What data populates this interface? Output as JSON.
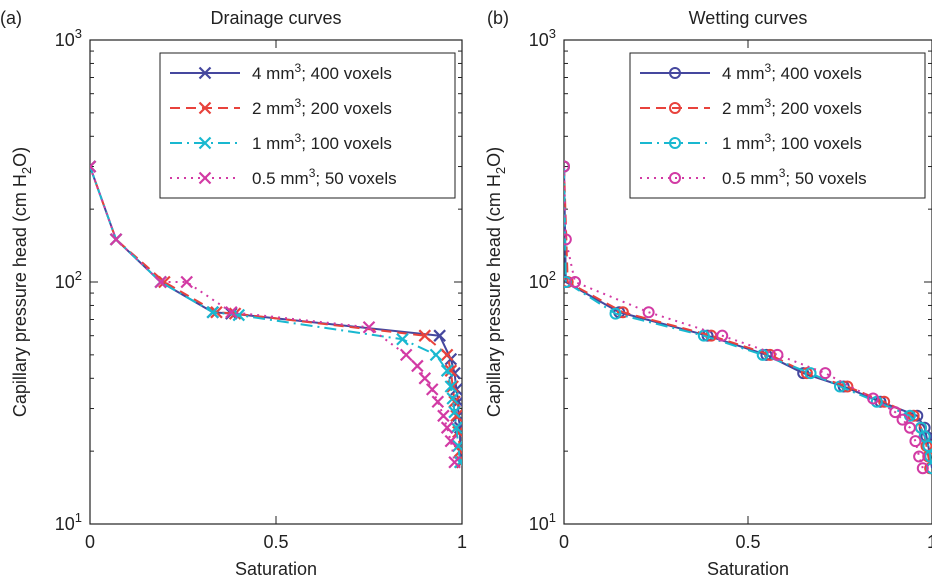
{
  "chart_data": [
    {
      "panel_label": "(a)",
      "title": "Drainage curves",
      "type": "line",
      "xlabel": "Saturation",
      "ylabel_parts": [
        "Capillary pressure head (cm H",
        "2",
        "O)"
      ],
      "y_scale": "log",
      "xlim": [
        0,
        1
      ],
      "ylim": [
        10,
        1000
      ],
      "x_ticks": [
        "0",
        "0.5",
        "1"
      ],
      "x_tick_values": [
        0,
        0.5,
        1
      ],
      "y_ticks": [
        {
          "base": "10",
          "exp": "1"
        },
        {
          "base": "10",
          "exp": "2"
        },
        {
          "base": "10",
          "exp": "3"
        }
      ],
      "y_tick_values": [
        10,
        100,
        1000
      ],
      "legend_position": "top-right",
      "marker": "x",
      "series": [
        {
          "name": "4 mm",
          "sup": "3",
          "rest": "; 400 voxels",
          "color": "#45479e",
          "dash": "solid",
          "x": [
            0,
            0.07,
            0.19,
            0.33,
            0.38,
            0.94,
            0.97,
            0.98,
            0.985,
            0.99,
            0.99,
            0.995,
            0.995,
            1.0
          ],
          "y": [
            300,
            150,
            100,
            75,
            74,
            60,
            48,
            42,
            36,
            32,
            28,
            25,
            20,
            18
          ]
        },
        {
          "name": "2 mm",
          "sup": "3",
          "rest": "; 200 voxels",
          "color": "#e8423c",
          "dash": "10,6",
          "x": [
            0,
            0.07,
            0.2,
            0.34,
            0.39,
            0.9,
            0.96,
            0.97,
            0.975,
            0.98,
            0.985,
            0.99,
            0.995,
            1.0
          ],
          "y": [
            300,
            150,
            100,
            75,
            74,
            60,
            50,
            43,
            37,
            32,
            28,
            24,
            20,
            18
          ]
        },
        {
          "name": "1 mm",
          "sup": "3",
          "rest": "; 100 voxels",
          "color": "#19b8d0",
          "dash": "12,5,2,5",
          "x": [
            0,
            0.07,
            0.19,
            0.33,
            0.4,
            0.84,
            0.93,
            0.96,
            0.97,
            0.975,
            0.98,
            0.985,
            0.99,
            0.995
          ],
          "y": [
            300,
            150,
            100,
            75,
            73,
            58,
            50,
            43,
            37,
            33,
            29,
            25,
            21,
            18
          ]
        },
        {
          "name": "0.5 mm",
          "sup": "3",
          "rest": "; 50 voxels",
          "color": "#d23aa4",
          "dash": "2,5",
          "x": [
            0,
            0.07,
            0.19,
            0.26,
            0.38,
            0.75,
            0.85,
            0.88,
            0.9,
            0.92,
            0.935,
            0.95,
            0.96,
            0.97,
            0.98
          ],
          "y": [
            300,
            150,
            100,
            100,
            75,
            65,
            50,
            45,
            40,
            36,
            32,
            28,
            25,
            22,
            18
          ]
        }
      ]
    },
    {
      "panel_label": "(b)",
      "title": "Wetting curves",
      "type": "line",
      "xlabel": "Saturation",
      "ylabel_parts": [
        "Capillary pressure head (cm H",
        "2",
        "O)"
      ],
      "y_scale": "log",
      "xlim": [
        0,
        1
      ],
      "ylim": [
        10,
        1000
      ],
      "x_ticks": [
        "0",
        "0.5",
        "1"
      ],
      "x_tick_values": [
        0,
        0.5,
        1
      ],
      "y_ticks": [
        {
          "base": "10",
          "exp": "1"
        },
        {
          "base": "10",
          "exp": "2"
        },
        {
          "base": "10",
          "exp": "3"
        }
      ],
      "y_tick_values": [
        10,
        100,
        1000
      ],
      "legend_position": "top-right",
      "marker": "o",
      "series": [
        {
          "name": "4 mm",
          "sup": "3",
          "rest": "; 400 voxels",
          "color": "#45479e",
          "dash": "solid",
          "x": [
            0,
            0.005,
            0.15,
            0.39,
            0.55,
            0.65,
            0.76,
            0.86,
            0.96,
            0.98,
            0.985,
            0.99,
            0.995,
            1.0
          ],
          "y": [
            300,
            100,
            75,
            60,
            50,
            42,
            37,
            32,
            28,
            25,
            23,
            21,
            19,
            17
          ]
        },
        {
          "name": "2 mm",
          "sup": "3",
          "rest": "; 200 voxels",
          "color": "#e8423c",
          "dash": "10,6",
          "x": [
            0,
            0.01,
            0.16,
            0.4,
            0.56,
            0.66,
            0.77,
            0.87,
            0.95,
            0.97,
            0.98,
            0.985,
            0.99,
            0.995
          ],
          "y": [
            300,
            100,
            75,
            60,
            50,
            42,
            37,
            32,
            28,
            25,
            23,
            21,
            19,
            17
          ]
        },
        {
          "name": "1 mm",
          "sup": "3",
          "rest": "; 100 voxels",
          "color": "#19b8d0",
          "dash": "12,5,2,5",
          "x": [
            0,
            0.005,
            0.14,
            0.38,
            0.54,
            0.67,
            0.75,
            0.85,
            0.94,
            0.97,
            0.98,
            0.99,
            0.995,
            1.0
          ],
          "y": [
            300,
            100,
            74,
            60,
            50,
            42,
            37,
            32,
            28,
            25,
            23,
            21,
            19,
            17
          ]
        },
        {
          "name": "0.5 mm",
          "sup": "3",
          "rest": "; 50 voxels",
          "color": "#d23aa4",
          "dash": "2,5",
          "x": [
            0,
            0.005,
            0.03,
            0.23,
            0.43,
            0.58,
            0.71,
            0.84,
            0.9,
            0.92,
            0.94,
            0.955,
            0.965,
            0.975
          ],
          "y": [
            300,
            150,
            100,
            75,
            60,
            50,
            42,
            33,
            29,
            27,
            25,
            22,
            19,
            17
          ]
        }
      ]
    }
  ]
}
